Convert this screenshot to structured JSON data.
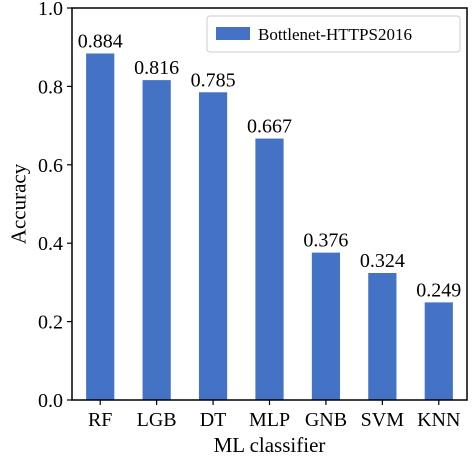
{
  "chart_data": {
    "type": "bar",
    "categories": [
      "RF",
      "LGB",
      "DT",
      "MLP",
      "GNB",
      "SVM",
      "KNN"
    ],
    "series": [
      {
        "name": "Bottlenet-HTTPS2016",
        "values": [
          0.884,
          0.816,
          0.785,
          0.667,
          0.376,
          0.324,
          0.249
        ],
        "value_labels": [
          "0.884",
          "0.816",
          "0.785",
          "0.667",
          "0.376",
          "0.324",
          "0.249"
        ]
      }
    ],
    "xlabel": "ML classifier",
    "ylabel": "Accuracy",
    "ylim": [
      0,
      1.0
    ],
    "yticks": [
      "0.0",
      "0.2",
      "0.4",
      "0.6",
      "0.8",
      "1.0"
    ],
    "grid": false,
    "legend": {
      "position": "top-right"
    },
    "colors": {
      "bar": "#4472c4",
      "axis": "#000000"
    }
  }
}
